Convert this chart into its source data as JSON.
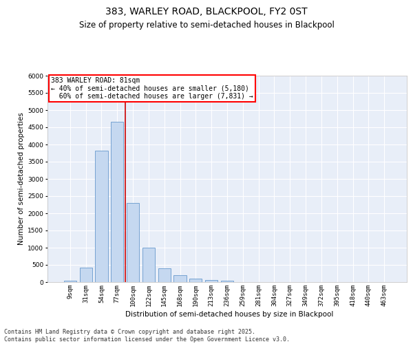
{
  "title": "383, WARLEY ROAD, BLACKPOOL, FY2 0ST",
  "subtitle": "Size of property relative to semi-detached houses in Blackpool",
  "xlabel": "Distribution of semi-detached houses by size in Blackpool",
  "ylabel": "Number of semi-detached properties",
  "categories": [
    "9sqm",
    "31sqm",
    "54sqm",
    "77sqm",
    "100sqm",
    "122sqm",
    "145sqm",
    "168sqm",
    "190sqm",
    "213sqm",
    "236sqm",
    "259sqm",
    "281sqm",
    "304sqm",
    "327sqm",
    "349sqm",
    "372sqm",
    "395sqm",
    "418sqm",
    "440sqm",
    "463sqm"
  ],
  "values": [
    50,
    430,
    3820,
    4660,
    2300,
    1000,
    410,
    200,
    100,
    70,
    50,
    0,
    0,
    0,
    0,
    0,
    0,
    0,
    0,
    0,
    0
  ],
  "bar_color": "#c5d8f0",
  "bar_edge_color": "#6699cc",
  "vline_x": 3.5,
  "vline_color": "#cc0000",
  "property_label": "383 WARLEY ROAD: 81sqm",
  "smaller_pct": "40%",
  "smaller_count": "5,180",
  "larger_pct": "60%",
  "larger_count": "7,831",
  "ylim": [
    0,
    6000
  ],
  "yticks": [
    0,
    500,
    1000,
    1500,
    2000,
    2500,
    3000,
    3500,
    4000,
    4500,
    5000,
    5500,
    6000
  ],
  "bg_color": "#e8eef8",
  "grid_color": "#ffffff",
  "footer": "Contains HM Land Registry data © Crown copyright and database right 2025.\nContains public sector information licensed under the Open Government Licence v3.0.",
  "title_fontsize": 10,
  "subtitle_fontsize": 8.5,
  "axis_label_fontsize": 7.5,
  "tick_fontsize": 6.5,
  "footer_fontsize": 6,
  "annot_fontsize": 7
}
